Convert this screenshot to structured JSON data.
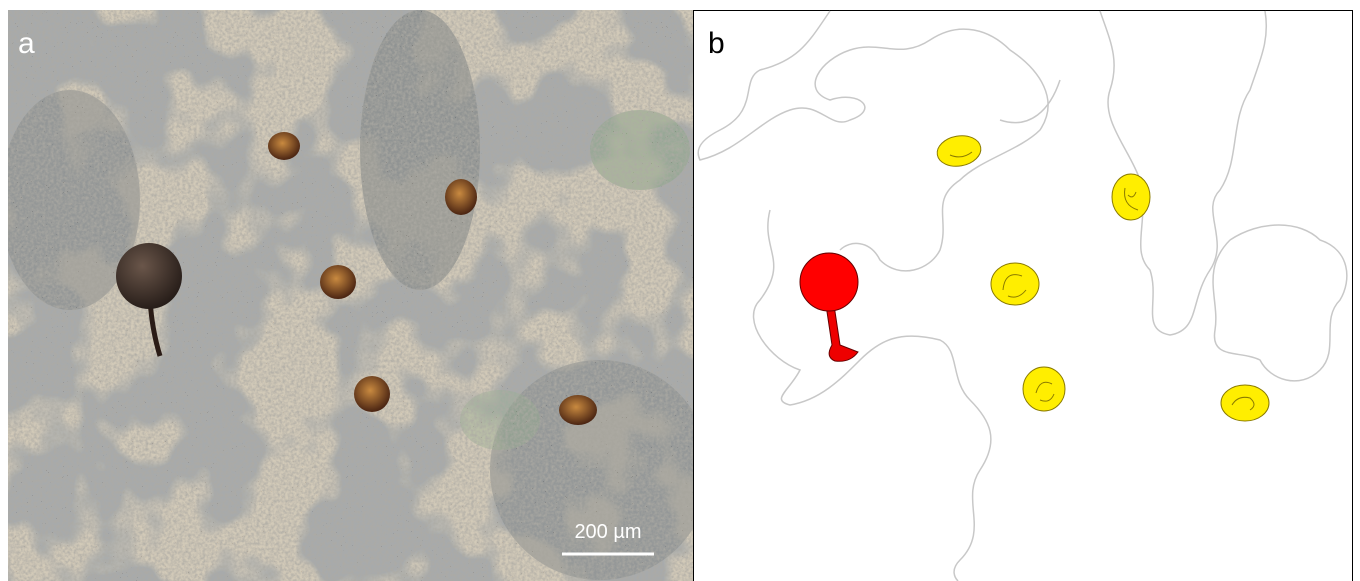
{
  "panels": [
    {
      "label": "a",
      "scale_bar": "200 µm"
    },
    {
      "label": "b"
    }
  ]
}
